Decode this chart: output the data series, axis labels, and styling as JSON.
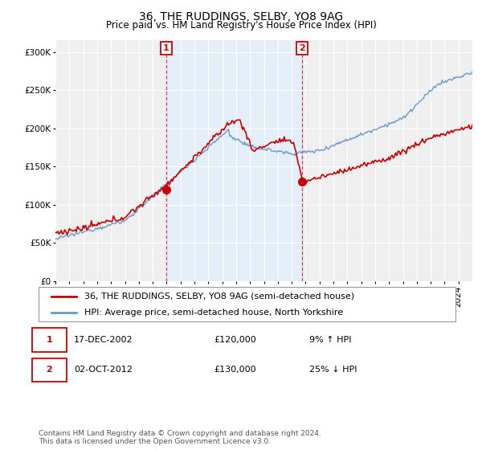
{
  "title": "36, THE RUDDINGS, SELBY, YO8 9AG",
  "subtitle": "Price paid vs. HM Land Registry's House Price Index (HPI)",
  "ylabel_ticks": [
    "£0",
    "£50K",
    "£100K",
    "£150K",
    "£200K",
    "£250K",
    "£300K"
  ],
  "ytick_values": [
    0,
    50000,
    100000,
    150000,
    200000,
    250000,
    300000
  ],
  "ylim": [
    0,
    315000
  ],
  "xlim_start": 1995.0,
  "xlim_end": 2025.0,
  "background_color": "#ffffff",
  "plot_bg_color": "#efefef",
  "grid_color": "#ffffff",
  "red_line_color": "#cc0000",
  "blue_line_color": "#6699cc",
  "marker1_x": 2002.97,
  "marker1_y": 120000,
  "marker2_x": 2012.75,
  "marker2_y": 130000,
  "shading_color": "#ddeeff",
  "shading_alpha": 0.6,
  "legend_label_red": "36, THE RUDDINGS, SELBY, YO8 9AG (semi-detached house)",
  "legend_label_blue": "HPI: Average price, semi-detached house, North Yorkshire",
  "table_row1": [
    "1",
    "17-DEC-2002",
    "£120,000",
    "9% ↑ HPI"
  ],
  "table_row2": [
    "2",
    "02-OCT-2012",
    "£130,000",
    "25% ↓ HPI"
  ],
  "footer": "Contains HM Land Registry data © Crown copyright and database right 2024.\nThis data is licensed under the Open Government Licence v3.0.",
  "title_fontsize": 10,
  "subtitle_fontsize": 8.5,
  "tick_fontsize": 7.5,
  "legend_fontsize": 8,
  "footer_fontsize": 6.5
}
